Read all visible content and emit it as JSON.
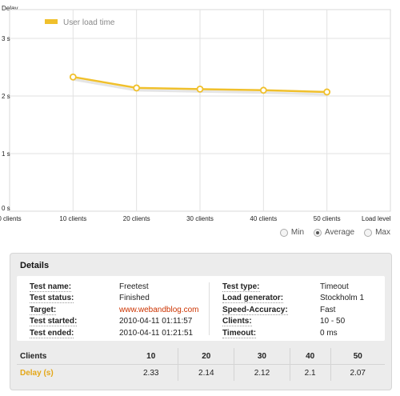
{
  "chart_data": {
    "type": "line",
    "ylabel": "Delay",
    "xlabel": "Load level",
    "x": [
      "0 clients",
      "10 clients",
      "20 clients",
      "30 clients",
      "40 clients",
      "50 clients"
    ],
    "y_ticks": [
      "0 s",
      "1 s",
      "2 s",
      "3 s"
    ],
    "ylim": [
      0,
      3.5
    ],
    "grid": true,
    "legend_position": "top-left",
    "series": [
      {
        "name": "User load time",
        "x": [
          10,
          20,
          30,
          40,
          50
        ],
        "values": [
          2.33,
          2.14,
          2.12,
          2.1,
          2.07
        ],
        "color": "#f0c02c"
      }
    ]
  },
  "view_options": [
    {
      "label": "Min",
      "checked": false
    },
    {
      "label": "Average",
      "checked": true
    },
    {
      "label": "Max",
      "checked": false
    }
  ],
  "details": {
    "title": "Details",
    "left": [
      {
        "label": "Test name:",
        "value": "Freetest"
      },
      {
        "label": "Test status:",
        "value": "Finished"
      },
      {
        "label": "Target:",
        "value": "www.webandblog.com",
        "link": true
      },
      {
        "label": "Test started:",
        "value": "2010-04-11 01:11:57"
      },
      {
        "label": "Test ended:",
        "value": "2010-04-11 01:21:51"
      }
    ],
    "right": [
      {
        "label": "Test type:",
        "value": "Timeout"
      },
      {
        "label": "Load generator:",
        "value": "Stockholm 1"
      },
      {
        "label": "Speed-Accuracy:",
        "value": "Fast"
      },
      {
        "label": "Clients:",
        "value": "10 - 50"
      },
      {
        "label": "Timeout:",
        "value": "0 ms"
      }
    ]
  },
  "results": {
    "clients_label": "Clients",
    "delay_label": "Delay (s)",
    "clients": [
      "10",
      "20",
      "30",
      "40",
      "50"
    ],
    "delays": [
      "2.33",
      "2.14",
      "2.12",
      "2.1",
      "2.07"
    ]
  }
}
